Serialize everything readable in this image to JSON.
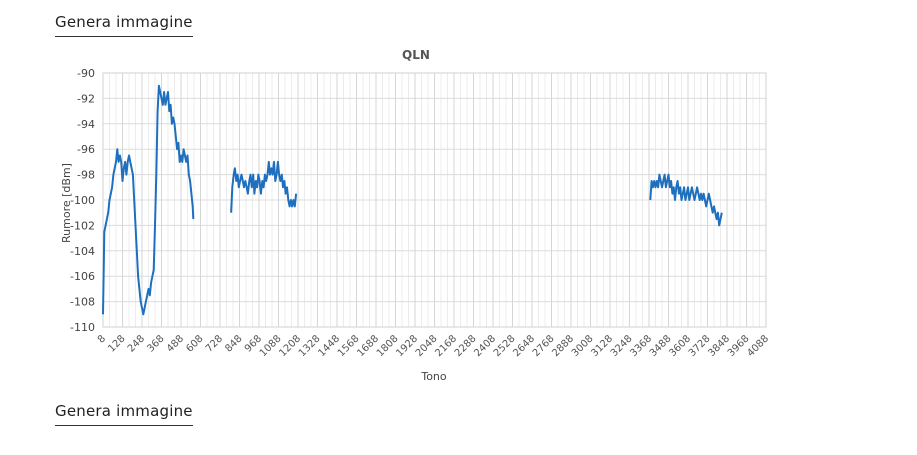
{
  "links": {
    "top_label": "Genera immagine",
    "bottom_label": "Genera immagine"
  },
  "chart_data": {
    "type": "line",
    "title": "QLN",
    "xlabel": "Tono",
    "ylabel": "Rumore [dBm]",
    "xlim": [
      8,
      4088
    ],
    "ylim": [
      -110,
      -90
    ],
    "grid": true,
    "line_color": "#1f6fbf",
    "x_ticks": [
      "8",
      "128",
      "248",
      "368",
      "488",
      "608",
      "728",
      "848",
      "968",
      "1088",
      "1208",
      "1328",
      "1448",
      "1568",
      "1688",
      "1808",
      "1928",
      "2048",
      "2168",
      "2288",
      "2408",
      "2528",
      "2648",
      "2768",
      "2888",
      "3008",
      "3128",
      "3248",
      "3368",
      "3488",
      "3608",
      "3728",
      "3848",
      "3968",
      "4088"
    ],
    "y_ticks": [
      "-90",
      "-92",
      "-94",
      "-96",
      "-98",
      "-100",
      "-102",
      "-104",
      "-106",
      "-108",
      "-110"
    ],
    "series": [
      {
        "segments": [
          [
            [
              8,
              -109
            ],
            [
              16,
              -102.5
            ],
            [
              24,
              -102
            ],
            [
              32,
              -101.5
            ],
            [
              40,
              -101
            ],
            [
              48,
              -100
            ],
            [
              56,
              -99.5
            ],
            [
              64,
              -99
            ],
            [
              72,
              -98
            ],
            [
              80,
              -97.5
            ],
            [
              88,
              -97
            ],
            [
              96,
              -96
            ],
            [
              104,
              -97
            ],
            [
              112,
              -96.5
            ],
            [
              120,
              -97
            ],
            [
              128,
              -98.5
            ],
            [
              136,
              -97.5
            ],
            [
              144,
              -97
            ],
            [
              152,
              -98
            ],
            [
              160,
              -97
            ],
            [
              168,
              -96.5
            ],
            [
              176,
              -97
            ],
            [
              184,
              -97.5
            ],
            [
              192,
              -98
            ],
            [
              200,
              -100
            ],
            [
              208,
              -102
            ],
            [
              216,
              -104
            ],
            [
              224,
              -106
            ],
            [
              232,
              -107
            ],
            [
              240,
              -108
            ],
            [
              248,
              -108.5
            ],
            [
              256,
              -109
            ],
            [
              264,
              -108.5
            ],
            [
              272,
              -108
            ],
            [
              280,
              -107.5
            ],
            [
              288,
              -107
            ],
            [
              296,
              -107.5
            ],
            [
              304,
              -106.5
            ],
            [
              312,
              -106
            ],
            [
              320,
              -105.5
            ],
            [
              328,
              -102
            ],
            [
              336,
              -98
            ],
            [
              344,
              -93
            ],
            [
              352,
              -91
            ],
            [
              360,
              -91.5
            ],
            [
              368,
              -92
            ],
            [
              376,
              -92.5
            ],
            [
              384,
              -91.5
            ],
            [
              392,
              -92.5
            ],
            [
              400,
              -92
            ],
            [
              408,
              -91.5
            ],
            [
              416,
              -93
            ],
            [
              424,
              -92.5
            ],
            [
              432,
              -94
            ],
            [
              440,
              -93.5
            ],
            [
              448,
              -94
            ],
            [
              456,
              -95
            ],
            [
              464,
              -96
            ],
            [
              472,
              -95.5
            ],
            [
              480,
              -97
            ],
            [
              488,
              -96.5
            ],
            [
              496,
              -97
            ],
            [
              504,
              -96
            ],
            [
              512,
              -96.5
            ],
            [
              520,
              -97
            ],
            [
              528,
              -96.5
            ],
            [
              536,
              -98
            ],
            [
              544,
              -98.5
            ],
            [
              552,
              -99.5
            ],
            [
              560,
              -100.5
            ],
            [
              564,
              -101.5
            ]
          ],
          [
            [
              796,
              -101
            ],
            [
              804,
              -99
            ],
            [
              812,
              -98
            ],
            [
              820,
              -97.5
            ],
            [
              828,
              -98.5
            ],
            [
              836,
              -98
            ],
            [
              844,
              -99
            ],
            [
              852,
              -98.5
            ],
            [
              860,
              -98
            ],
            [
              868,
              -98.5
            ],
            [
              876,
              -99
            ],
            [
              884,
              -98.5
            ],
            [
              892,
              -99
            ],
            [
              900,
              -99.5
            ],
            [
              908,
              -98.5
            ],
            [
              916,
              -98
            ],
            [
              924,
              -99
            ],
            [
              932,
              -98
            ],
            [
              940,
              -99.5
            ],
            [
              948,
              -98.5
            ],
            [
              956,
              -99
            ],
            [
              964,
              -98
            ],
            [
              972,
              -98.5
            ],
            [
              980,
              -99.5
            ],
            [
              988,
              -98.5
            ],
            [
              996,
              -99
            ],
            [
              1004,
              -98
            ],
            [
              1012,
              -98.5
            ],
            [
              1020,
              -98
            ],
            [
              1028,
              -97
            ],
            [
              1036,
              -98
            ],
            [
              1044,
              -97.5
            ],
            [
              1052,
              -98
            ],
            [
              1060,
              -97
            ],
            [
              1068,
              -98.5
            ],
            [
              1076,
              -98
            ],
            [
              1084,
              -97
            ],
            [
              1092,
              -98
            ],
            [
              1100,
              -98.5
            ],
            [
              1108,
              -98
            ],
            [
              1116,
              -99
            ],
            [
              1124,
              -98.5
            ],
            [
              1132,
              -99.5
            ],
            [
              1140,
              -99
            ],
            [
              1148,
              -100
            ],
            [
              1156,
              -100.5
            ],
            [
              1164,
              -100
            ],
            [
              1172,
              -100.5
            ],
            [
              1180,
              -100
            ],
            [
              1188,
              -100.5
            ],
            [
              1196,
              -99.5
            ]
          ],
          [
            [
              3376,
              -100
            ],
            [
              3384,
              -98.5
            ],
            [
              3392,
              -99
            ],
            [
              3400,
              -98.5
            ],
            [
              3408,
              -99
            ],
            [
              3416,
              -98.5
            ],
            [
              3424,
              -99
            ],
            [
              3432,
              -98
            ],
            [
              3440,
              -98.5
            ],
            [
              3448,
              -99
            ],
            [
              3456,
              -98.5
            ],
            [
              3464,
              -98
            ],
            [
              3472,
              -99
            ],
            [
              3480,
              -98.5
            ],
            [
              3488,
              -98
            ],
            [
              3496,
              -99
            ],
            [
              3504,
              -98.5
            ],
            [
              3512,
              -99.5
            ],
            [
              3520,
              -99
            ],
            [
              3528,
              -100
            ],
            [
              3536,
              -99
            ],
            [
              3544,
              -98.5
            ],
            [
              3552,
              -99.5
            ],
            [
              3560,
              -99
            ],
            [
              3568,
              -100
            ],
            [
              3576,
              -99.5
            ],
            [
              3584,
              -99
            ],
            [
              3592,
              -100
            ],
            [
              3600,
              -99.5
            ],
            [
              3608,
              -99
            ],
            [
              3616,
              -100
            ],
            [
              3624,
              -99.5
            ],
            [
              3632,
              -99
            ],
            [
              3640,
              -99.5
            ],
            [
              3648,
              -100
            ],
            [
              3656,
              -99.5
            ],
            [
              3664,
              -99
            ],
            [
              3672,
              -99.5
            ],
            [
              3680,
              -100
            ],
            [
              3688,
              -99.5
            ],
            [
              3696,
              -100
            ],
            [
              3704,
              -99.5
            ],
            [
              3712,
              -100
            ],
            [
              3720,
              -100.5
            ],
            [
              3728,
              -100
            ],
            [
              3736,
              -99.5
            ],
            [
              3744,
              -100
            ],
            [
              3752,
              -100.5
            ],
            [
              3760,
              -101
            ],
            [
              3768,
              -100.5
            ],
            [
              3776,
              -101
            ],
            [
              3784,
              -101.5
            ],
            [
              3792,
              -101
            ],
            [
              3800,
              -102
            ],
            [
              3808,
              -101.5
            ],
            [
              3816,
              -101
            ]
          ]
        ]
      }
    ]
  }
}
